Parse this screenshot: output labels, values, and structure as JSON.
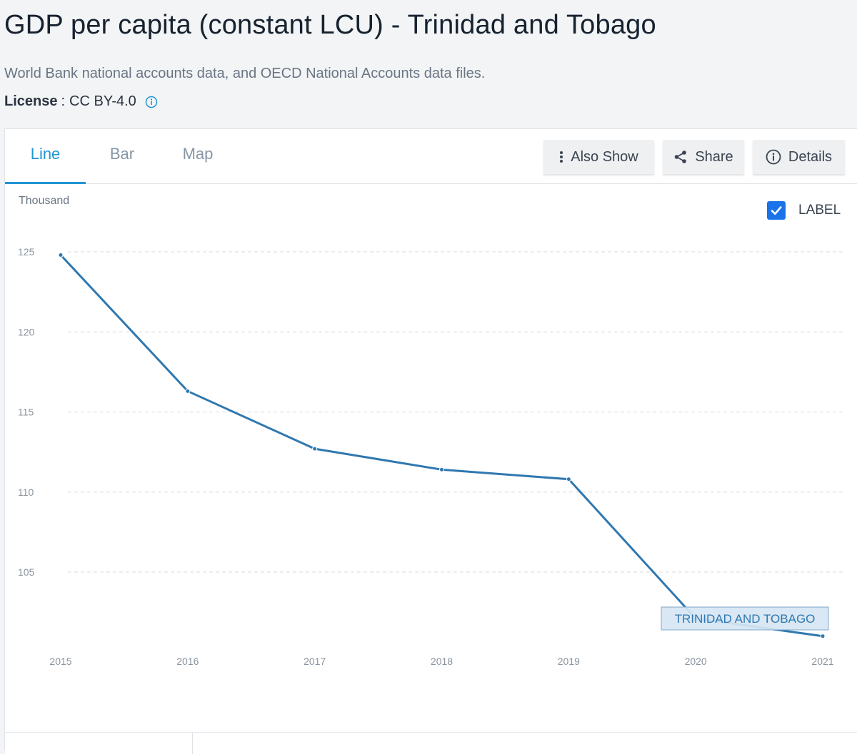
{
  "page": {
    "title": "GDP per capita (constant LCU) - Trinidad and Tobago",
    "source": "World Bank national accounts data, and OECD National Accounts data files.",
    "license_label": "License",
    "license_sep": ":",
    "license_value": "CC BY-4.0",
    "info_icon": "info-icon"
  },
  "tabs": [
    {
      "label": "Line",
      "active": true
    },
    {
      "label": "Bar",
      "active": false
    },
    {
      "label": "Map",
      "active": false
    }
  ],
  "toolbar": {
    "also_show": {
      "label": "Also Show",
      "icon": "vertical-dots-icon"
    },
    "share": {
      "label": "Share",
      "icon": "share-icon"
    },
    "details": {
      "label": "Details",
      "icon": "info-circle-icon"
    }
  },
  "label_toggle": {
    "label": "LABEL",
    "checked": true
  },
  "colors": {
    "accent": "#2196d3",
    "series": "#2f78b0",
    "checkbox": "#1a73e8",
    "series_label_bg": "#d6e6f3"
  },
  "chart_data": {
    "type": "line",
    "unit_label": "Thousand",
    "x": [
      "2015",
      "2016",
      "2017",
      "2018",
      "2019",
      "2020",
      "2021"
    ],
    "series": [
      {
        "name": "TRINIDAD AND TOBAGO",
        "values": [
          124.8,
          116.3,
          112.7,
          111.4,
          110.8,
          102.1,
          101.0
        ]
      }
    ],
    "yticks": [
      105,
      110,
      115,
      120,
      125
    ],
    "ylim": [
      100.5,
      127.5
    ],
    "grid": true,
    "legend": "series-label-bottom-right"
  }
}
